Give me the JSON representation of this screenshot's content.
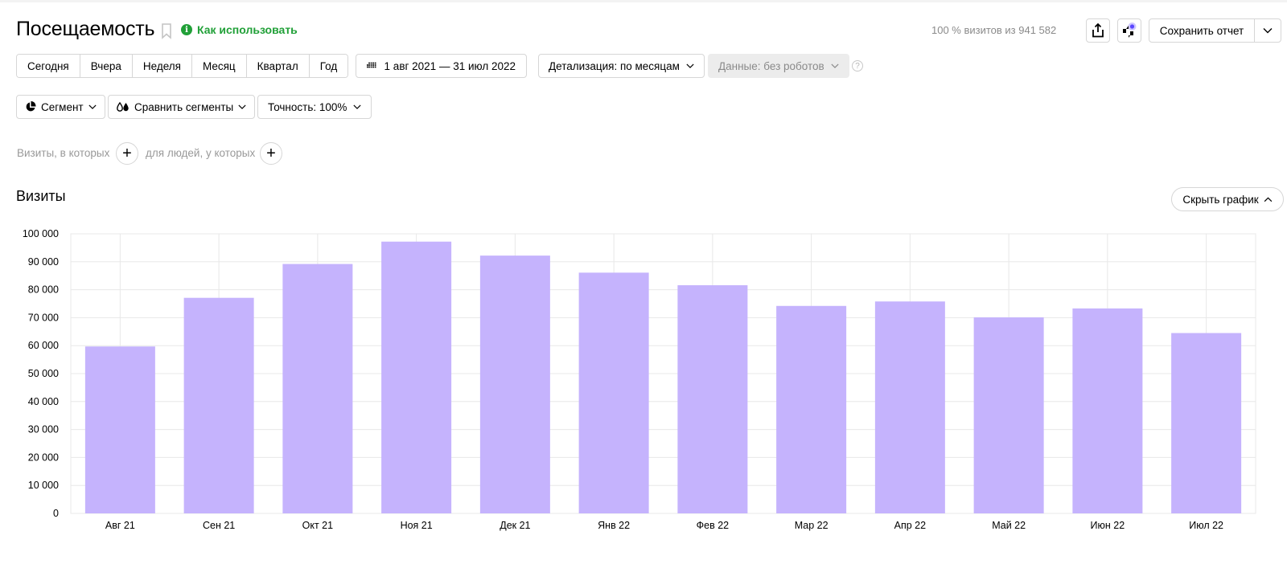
{
  "header": {
    "title": "Посещаемость",
    "howto_label": "Как использовать",
    "visits_info": "100 % визитов из 941 582",
    "save_label": "Сохранить отчет"
  },
  "periods": [
    "Сегодня",
    "Вчера",
    "Неделя",
    "Месяц",
    "Квартал",
    "Год"
  ],
  "date_range": "1 авг 2021 — 31 июл 2022",
  "detail_label": "Детализация: по месяцам",
  "data_filter_label": "Данные: без роботов",
  "help_glyph": "?",
  "segment_label": "Сегмент",
  "compare_label": "Сравнить сегменты",
  "accuracy_label": "Точность: 100%",
  "filters": {
    "visits_label": "Визиты, в которых",
    "people_label": "для людей, у которых"
  },
  "chart_section": {
    "title": "Визиты",
    "hide_label": "Скрыть график"
  },
  "colors": {
    "bar": "#c5b3fd",
    "accent_green": "#21a038"
  },
  "chart_data": {
    "type": "bar",
    "categories": [
      "Авг 21",
      "Сен 21",
      "Окт 21",
      "Ноя 21",
      "Дек 21",
      "Янв 22",
      "Фев 22",
      "Мар 22",
      "Апр 22",
      "Май 22",
      "Июн 22",
      "Июл 22"
    ],
    "series": [
      {
        "values": [
          59700,
          77100,
          89200,
          97200,
          92200,
          86100,
          81600,
          74200,
          75800,
          70100,
          73300,
          64500
        ]
      }
    ],
    "ylim": [
      0,
      100000
    ],
    "yticks": [
      0,
      10000,
      20000,
      30000,
      40000,
      50000,
      60000,
      70000,
      80000,
      90000,
      100000
    ],
    "ytick_labels": [
      "0",
      "10 000",
      "20 000",
      "30 000",
      "40 000",
      "50 000",
      "60 000",
      "70 000",
      "80 000",
      "90 000",
      "100 000"
    ],
    "grid": true
  }
}
